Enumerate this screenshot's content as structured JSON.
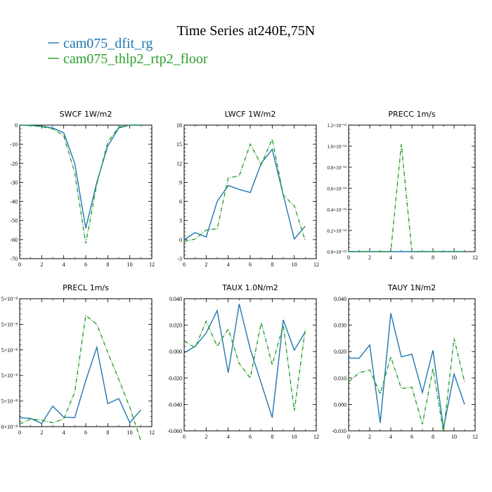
{
  "figure": {
    "title": "Time Series at240E,75N",
    "legend": [
      {
        "label": "cam075_dfit_rg",
        "color": "#1f77b4",
        "dash": "solid"
      },
      {
        "label": "cam075_thlp2_rtp2_floor",
        "color": "#2ca02c",
        "dash": "dashdot"
      }
    ]
  },
  "chart_data": [
    {
      "type": "line",
      "title": "SWCF  1W/m2",
      "x": [
        0,
        1,
        2,
        3,
        4,
        5,
        6,
        7,
        8,
        9,
        10,
        11
      ],
      "xlim": [
        0,
        12
      ],
      "xticks": [
        "0",
        "2",
        "4",
        "6",
        "8",
        "10",
        "12"
      ],
      "ylim": [
        -70,
        0
      ],
      "yticks": [
        "0",
        "-10",
        "-20",
        "-30",
        "-40",
        "-50",
        "-60",
        "-70"
      ],
      "series": [
        {
          "name": "cam075_dfit_rg",
          "values": [
            0,
            -0.2,
            -0.6,
            -1.5,
            -4,
            -20,
            -54,
            -30,
            -11,
            -1.5,
            0,
            0
          ]
        },
        {
          "name": "cam075_thlp2_rtp2_floor",
          "values": [
            0,
            -0.3,
            -0.8,
            -2,
            -5.5,
            -25,
            -62,
            -31,
            -9,
            -1,
            0,
            0
          ]
        }
      ]
    },
    {
      "type": "line",
      "title": "LWCF  1W/m2",
      "x": [
        0,
        1,
        2,
        3,
        4,
        5,
        6,
        7,
        8,
        9,
        10,
        11
      ],
      "xlim": [
        0,
        12
      ],
      "xticks": [
        "0",
        "2",
        "4",
        "6",
        "8",
        "10",
        "12"
      ],
      "ylim": [
        -3,
        18
      ],
      "yticks": [
        "-3",
        "0",
        "3",
        "6",
        "9",
        "12",
        "15",
        "18"
      ],
      "series": [
        {
          "name": "cam075_dfit_rg",
          "values": [
            0,
            1.1,
            0.4,
            6,
            8.5,
            7.9,
            7.4,
            12,
            14.2,
            7,
            0.1,
            2.1
          ]
        },
        {
          "name": "cam075_thlp2_rtp2_floor",
          "values": [
            -0.3,
            0.1,
            1.5,
            1.7,
            9.7,
            10,
            15,
            11.8,
            15.8,
            7,
            5.3,
            -0.2
          ]
        }
      ]
    },
    {
      "type": "line",
      "title": "PRECC   1m/s",
      "x": [
        0,
        1,
        2,
        3,
        4,
        5,
        6,
        7,
        8,
        9,
        10,
        11
      ],
      "xlim": [
        0,
        12
      ],
      "xticks": [
        "0",
        "2",
        "4",
        "6",
        "8",
        "10",
        "12"
      ],
      "ylim": [
        0,
        1.2e-13
      ],
      "yticks": [
        "0.0×10⁻¹³",
        "0.2×10⁻¹³",
        "0.4×10⁻¹³",
        "0.6×10⁻¹³",
        "0.8×10⁻¹³",
        "1.0×10⁻¹³",
        "1.2×10⁻¹³"
      ],
      "series": [
        {
          "name": "cam075_dfit_rg",
          "values": [
            0,
            0,
            0,
            0,
            0,
            0,
            0,
            0,
            0,
            0,
            0,
            0
          ]
        },
        {
          "name": "cam075_thlp2_rtp2_floor",
          "values": [
            0,
            0,
            0,
            0,
            0,
            1.02e-13,
            0,
            0,
            0,
            0,
            0,
            0
          ]
        }
      ]
    },
    {
      "type": "line",
      "title": "PRECL   1m/s",
      "x": [
        0,
        1,
        2,
        3,
        4,
        5,
        6,
        7,
        8,
        9,
        10,
        11
      ],
      "xlim": [
        0,
        12
      ],
      "xticks": [
        "0",
        "2",
        "4",
        "6",
        "8",
        "10",
        "12"
      ],
      "ylim": [
        0.0,
        1.0
      ],
      "yticks": [
        "0×10⁻⁸",
        "5×10⁻⁸",
        "5×10⁻⁸",
        "5×10⁻⁸",
        "5×10⁻⁸",
        "5×10⁻⁸"
      ],
      "series": [
        {
          "name": "cam075_dfit_rg",
          "values": [
            0.07,
            0.065,
            0.025,
            0.16,
            0.075,
            0.07,
            0.36,
            0.62,
            0.18,
            0.22,
            0.03,
            0.13
          ]
        },
        {
          "name": "cam075_thlp2_rtp2_floor",
          "values": [
            0.02,
            0.06,
            0.05,
            0.03,
            0.06,
            0.27,
            0.87,
            0.8,
            0.58,
            0.37,
            0.15,
            -0.11
          ]
        }
      ]
    },
    {
      "type": "line",
      "title": "TAUX  1.0N/m2",
      "x": [
        0,
        1,
        2,
        3,
        4,
        5,
        6,
        7,
        8,
        9,
        10,
        11
      ],
      "xlim": [
        0,
        12
      ],
      "xticks": [
        "0",
        "2",
        "4",
        "6",
        "8",
        "10",
        "12"
      ],
      "ylim": [
        -0.06,
        0.04
      ],
      "yticks": [
        "-0.060",
        "-0.040",
        "-0.020",
        "0.000",
        "0.020",
        "0.040"
      ],
      "series": [
        {
          "name": "cam075_dfit_rg",
          "values": [
            -0.001,
            0.004,
            0.014,
            0.031,
            -0.016,
            0.036,
            0.002,
            -0.024,
            -0.05,
            0.024,
            0.001,
            0.015
          ]
        },
        {
          "name": "cam075_thlp2_rtp2_floor",
          "values": [
            0.008,
            0.003,
            0.023,
            0.004,
            0.017,
            -0.009,
            -0.02,
            0.022,
            -0.01,
            0.02,
            -0.045,
            0.017
          ]
        }
      ]
    },
    {
      "type": "line",
      "title": "TAUY   1N/m2",
      "x": [
        0,
        1,
        2,
        3,
        4,
        5,
        6,
        7,
        8,
        9,
        10,
        11
      ],
      "xlim": [
        0,
        12
      ],
      "xticks": [
        "0",
        "2",
        "4",
        "6",
        "8",
        "10",
        "12"
      ],
      "ylim": [
        -0.01,
        0.04
      ],
      "yticks": [
        "-0.010",
        "0.000",
        "0.010",
        "0.020",
        "0.030",
        "0.040"
      ],
      "series": [
        {
          "name": "cam075_dfit_rg",
          "values": [
            0.0175,
            0.0175,
            0.0225,
            -0.007,
            0.0345,
            0.018,
            0.019,
            0.0045,
            0.0205,
            -0.009,
            0.0115,
            0.0
          ]
        },
        {
          "name": "cam075_thlp2_rtp2_floor",
          "values": [
            0.0085,
            0.012,
            0.013,
            0.004,
            0.018,
            0.006,
            0.0065,
            -0.0075,
            0.0135,
            -0.0105,
            0.025,
            0.0085
          ]
        }
      ]
    }
  ]
}
